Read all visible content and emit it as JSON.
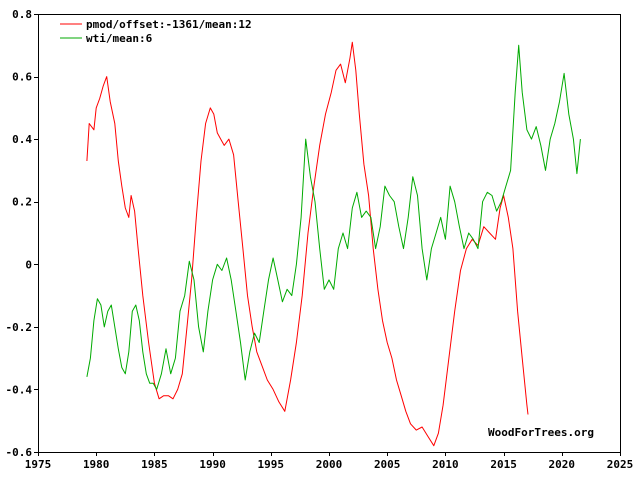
{
  "chart_data": {
    "type": "line",
    "title": "",
    "xlabel": "",
    "ylabel": "",
    "xlim": [
      1975,
      2025
    ],
    "ylim": [
      -0.6,
      0.8
    ],
    "x_ticks": [
      1975,
      1980,
      1985,
      1990,
      1995,
      2000,
      2005,
      2010,
      2015,
      2020,
      2025
    ],
    "y_ticks": [
      -0.6,
      -0.4,
      -0.2,
      0,
      0.2,
      0.4,
      0.6,
      0.8
    ],
    "x_tick_labels": [
      "1975",
      "1980",
      "1985",
      "1990",
      "1995",
      "2000",
      "2005",
      "2010",
      "2015",
      "2020",
      "2025"
    ],
    "y_tick_labels": [
      "-0.6",
      "-0.4",
      "-0.2",
      "0",
      "0.2",
      "0.4",
      "0.6",
      "0.8"
    ],
    "grid": false,
    "legend_position": "top-left",
    "watermark": "WoodForTrees.org",
    "series": [
      {
        "name": "pmod/offset:-1361/mean:12",
        "color": "#ff0000",
        "points": [
          [
            1979.2,
            0.33
          ],
          [
            1979.4,
            0.45
          ],
          [
            1979.8,
            0.43
          ],
          [
            1980.0,
            0.5
          ],
          [
            1980.3,
            0.53
          ],
          [
            1980.6,
            0.57
          ],
          [
            1980.9,
            0.6
          ],
          [
            1981.2,
            0.52
          ],
          [
            1981.6,
            0.45
          ],
          [
            1981.9,
            0.33
          ],
          [
            1982.2,
            0.25
          ],
          [
            1982.5,
            0.18
          ],
          [
            1982.8,
            0.15
          ],
          [
            1983.0,
            0.22
          ],
          [
            1983.3,
            0.17
          ],
          [
            1983.6,
            0.05
          ],
          [
            1984.0,
            -0.1
          ],
          [
            1984.5,
            -0.25
          ],
          [
            1985.0,
            -0.38
          ],
          [
            1985.4,
            -0.43
          ],
          [
            1985.8,
            -0.42
          ],
          [
            1986.2,
            -0.42
          ],
          [
            1986.6,
            -0.43
          ],
          [
            1987.0,
            -0.4
          ],
          [
            1987.4,
            -0.35
          ],
          [
            1987.8,
            -0.2
          ],
          [
            1988.2,
            -0.05
          ],
          [
            1988.6,
            0.15
          ],
          [
            1989.0,
            0.33
          ],
          [
            1989.4,
            0.45
          ],
          [
            1989.8,
            0.5
          ],
          [
            1990.1,
            0.48
          ],
          [
            1990.4,
            0.42
          ],
          [
            1990.7,
            0.4
          ],
          [
            1991.0,
            0.38
          ],
          [
            1991.4,
            0.4
          ],
          [
            1991.8,
            0.35
          ],
          [
            1992.2,
            0.2
          ],
          [
            1992.6,
            0.05
          ],
          [
            1993.0,
            -0.1
          ],
          [
            1993.4,
            -0.2
          ],
          [
            1993.8,
            -0.28
          ],
          [
            1994.2,
            -0.32
          ],
          [
            1994.7,
            -0.37
          ],
          [
            1995.2,
            -0.4
          ],
          [
            1995.7,
            -0.44
          ],
          [
            1996.2,
            -0.47
          ],
          [
            1996.7,
            -0.37
          ],
          [
            1997.2,
            -0.25
          ],
          [
            1997.7,
            -0.1
          ],
          [
            1998.2,
            0.1
          ],
          [
            1998.7,
            0.25
          ],
          [
            1999.2,
            0.38
          ],
          [
            1999.7,
            0.48
          ],
          [
            2000.2,
            0.55
          ],
          [
            2000.6,
            0.62
          ],
          [
            2001.0,
            0.64
          ],
          [
            2001.4,
            0.58
          ],
          [
            2001.8,
            0.66
          ],
          [
            2002.0,
            0.71
          ],
          [
            2002.3,
            0.62
          ],
          [
            2002.6,
            0.48
          ],
          [
            2003.0,
            0.32
          ],
          [
            2003.4,
            0.22
          ],
          [
            2003.8,
            0.05
          ],
          [
            2004.2,
            -0.08
          ],
          [
            2004.6,
            -0.18
          ],
          [
            2005.0,
            -0.25
          ],
          [
            2005.4,
            -0.3
          ],
          [
            2005.8,
            -0.37
          ],
          [
            2006.2,
            -0.42
          ],
          [
            2006.6,
            -0.47
          ],
          [
            2007.0,
            -0.51
          ],
          [
            2007.5,
            -0.53
          ],
          [
            2008.0,
            -0.52
          ],
          [
            2008.5,
            -0.55
          ],
          [
            2009.0,
            -0.58
          ],
          [
            2009.4,
            -0.54
          ],
          [
            2009.8,
            -0.45
          ],
          [
            2010.3,
            -0.3
          ],
          [
            2010.8,
            -0.15
          ],
          [
            2011.3,
            -0.02
          ],
          [
            2011.8,
            0.05
          ],
          [
            2012.3,
            0.08
          ],
          [
            2012.8,
            0.06
          ],
          [
            2013.3,
            0.12
          ],
          [
            2013.8,
            0.1
          ],
          [
            2014.3,
            0.08
          ],
          [
            2014.7,
            0.18
          ],
          [
            2015.0,
            0.22
          ],
          [
            2015.4,
            0.15
          ],
          [
            2015.8,
            0.05
          ],
          [
            2016.2,
            -0.15
          ],
          [
            2016.6,
            -0.3
          ],
          [
            2017.0,
            -0.45
          ],
          [
            2017.1,
            -0.48
          ]
        ]
      },
      {
        "name": "wti/mean:6",
        "color": "#00aa00",
        "points": [
          [
            1979.2,
            -0.36
          ],
          [
            1979.5,
            -0.3
          ],
          [
            1979.8,
            -0.18
          ],
          [
            1980.1,
            -0.11
          ],
          [
            1980.4,
            -0.13
          ],
          [
            1980.7,
            -0.2
          ],
          [
            1981.0,
            -0.15
          ],
          [
            1981.3,
            -0.13
          ],
          [
            1981.6,
            -0.2
          ],
          [
            1981.9,
            -0.27
          ],
          [
            1982.2,
            -0.33
          ],
          [
            1982.5,
            -0.35
          ],
          [
            1982.8,
            -0.28
          ],
          [
            1983.1,
            -0.15
          ],
          [
            1983.4,
            -0.13
          ],
          [
            1983.7,
            -0.18
          ],
          [
            1984.0,
            -0.28
          ],
          [
            1984.3,
            -0.35
          ],
          [
            1984.6,
            -0.38
          ],
          [
            1984.9,
            -0.38
          ],
          [
            1985.2,
            -0.4
          ],
          [
            1985.6,
            -0.35
          ],
          [
            1986.0,
            -0.27
          ],
          [
            1986.4,
            -0.35
          ],
          [
            1986.8,
            -0.3
          ],
          [
            1987.2,
            -0.15
          ],
          [
            1987.6,
            -0.1
          ],
          [
            1988.0,
            0.01
          ],
          [
            1988.4,
            -0.05
          ],
          [
            1988.8,
            -0.2
          ],
          [
            1989.2,
            -0.28
          ],
          [
            1989.6,
            -0.15
          ],
          [
            1990.0,
            -0.05
          ],
          [
            1990.4,
            0.0
          ],
          [
            1990.8,
            -0.02
          ],
          [
            1991.2,
            0.02
          ],
          [
            1991.6,
            -0.05
          ],
          [
            1992.0,
            -0.15
          ],
          [
            1992.4,
            -0.25
          ],
          [
            1992.8,
            -0.37
          ],
          [
            1993.2,
            -0.28
          ],
          [
            1993.6,
            -0.22
          ],
          [
            1994.0,
            -0.25
          ],
          [
            1994.4,
            -0.15
          ],
          [
            1994.8,
            -0.05
          ],
          [
            1995.2,
            0.02
          ],
          [
            1995.6,
            -0.05
          ],
          [
            1996.0,
            -0.12
          ],
          [
            1996.4,
            -0.08
          ],
          [
            1996.8,
            -0.1
          ],
          [
            1997.2,
            0.0
          ],
          [
            1997.6,
            0.15
          ],
          [
            1998.0,
            0.4
          ],
          [
            1998.4,
            0.28
          ],
          [
            1998.8,
            0.2
          ],
          [
            1999.2,
            0.05
          ],
          [
            1999.6,
            -0.08
          ],
          [
            2000.0,
            -0.05
          ],
          [
            2000.4,
            -0.08
          ],
          [
            2000.8,
            0.05
          ],
          [
            2001.2,
            0.1
          ],
          [
            2001.6,
            0.05
          ],
          [
            2002.0,
            0.18
          ],
          [
            2002.4,
            0.23
          ],
          [
            2002.8,
            0.15
          ],
          [
            2003.2,
            0.17
          ],
          [
            2003.6,
            0.15
          ],
          [
            2004.0,
            0.05
          ],
          [
            2004.4,
            0.12
          ],
          [
            2004.8,
            0.25
          ],
          [
            2005.2,
            0.22
          ],
          [
            2005.6,
            0.2
          ],
          [
            2006.0,
            0.12
          ],
          [
            2006.4,
            0.05
          ],
          [
            2006.8,
            0.15
          ],
          [
            2007.2,
            0.28
          ],
          [
            2007.6,
            0.22
          ],
          [
            2008.0,
            0.05
          ],
          [
            2008.4,
            -0.05
          ],
          [
            2008.8,
            0.05
          ],
          [
            2009.2,
            0.1
          ],
          [
            2009.6,
            0.15
          ],
          [
            2010.0,
            0.08
          ],
          [
            2010.4,
            0.25
          ],
          [
            2010.8,
            0.2
          ],
          [
            2011.2,
            0.12
          ],
          [
            2011.6,
            0.05
          ],
          [
            2012.0,
            0.1
          ],
          [
            2012.4,
            0.08
          ],
          [
            2012.8,
            0.05
          ],
          [
            2013.2,
            0.2
          ],
          [
            2013.6,
            0.23
          ],
          [
            2014.0,
            0.22
          ],
          [
            2014.4,
            0.17
          ],
          [
            2014.8,
            0.2
          ],
          [
            2015.2,
            0.25
          ],
          [
            2015.6,
            0.3
          ],
          [
            2016.0,
            0.55
          ],
          [
            2016.3,
            0.7
          ],
          [
            2016.6,
            0.55
          ],
          [
            2017.0,
            0.43
          ],
          [
            2017.4,
            0.4
          ],
          [
            2017.8,
            0.44
          ],
          [
            2018.2,
            0.38
          ],
          [
            2018.6,
            0.3
          ],
          [
            2019.0,
            0.4
          ],
          [
            2019.4,
            0.45
          ],
          [
            2019.8,
            0.52
          ],
          [
            2020.2,
            0.61
          ],
          [
            2020.6,
            0.48
          ],
          [
            2021.0,
            0.4
          ],
          [
            2021.3,
            0.29
          ],
          [
            2021.6,
            0.4
          ]
        ]
      }
    ]
  }
}
